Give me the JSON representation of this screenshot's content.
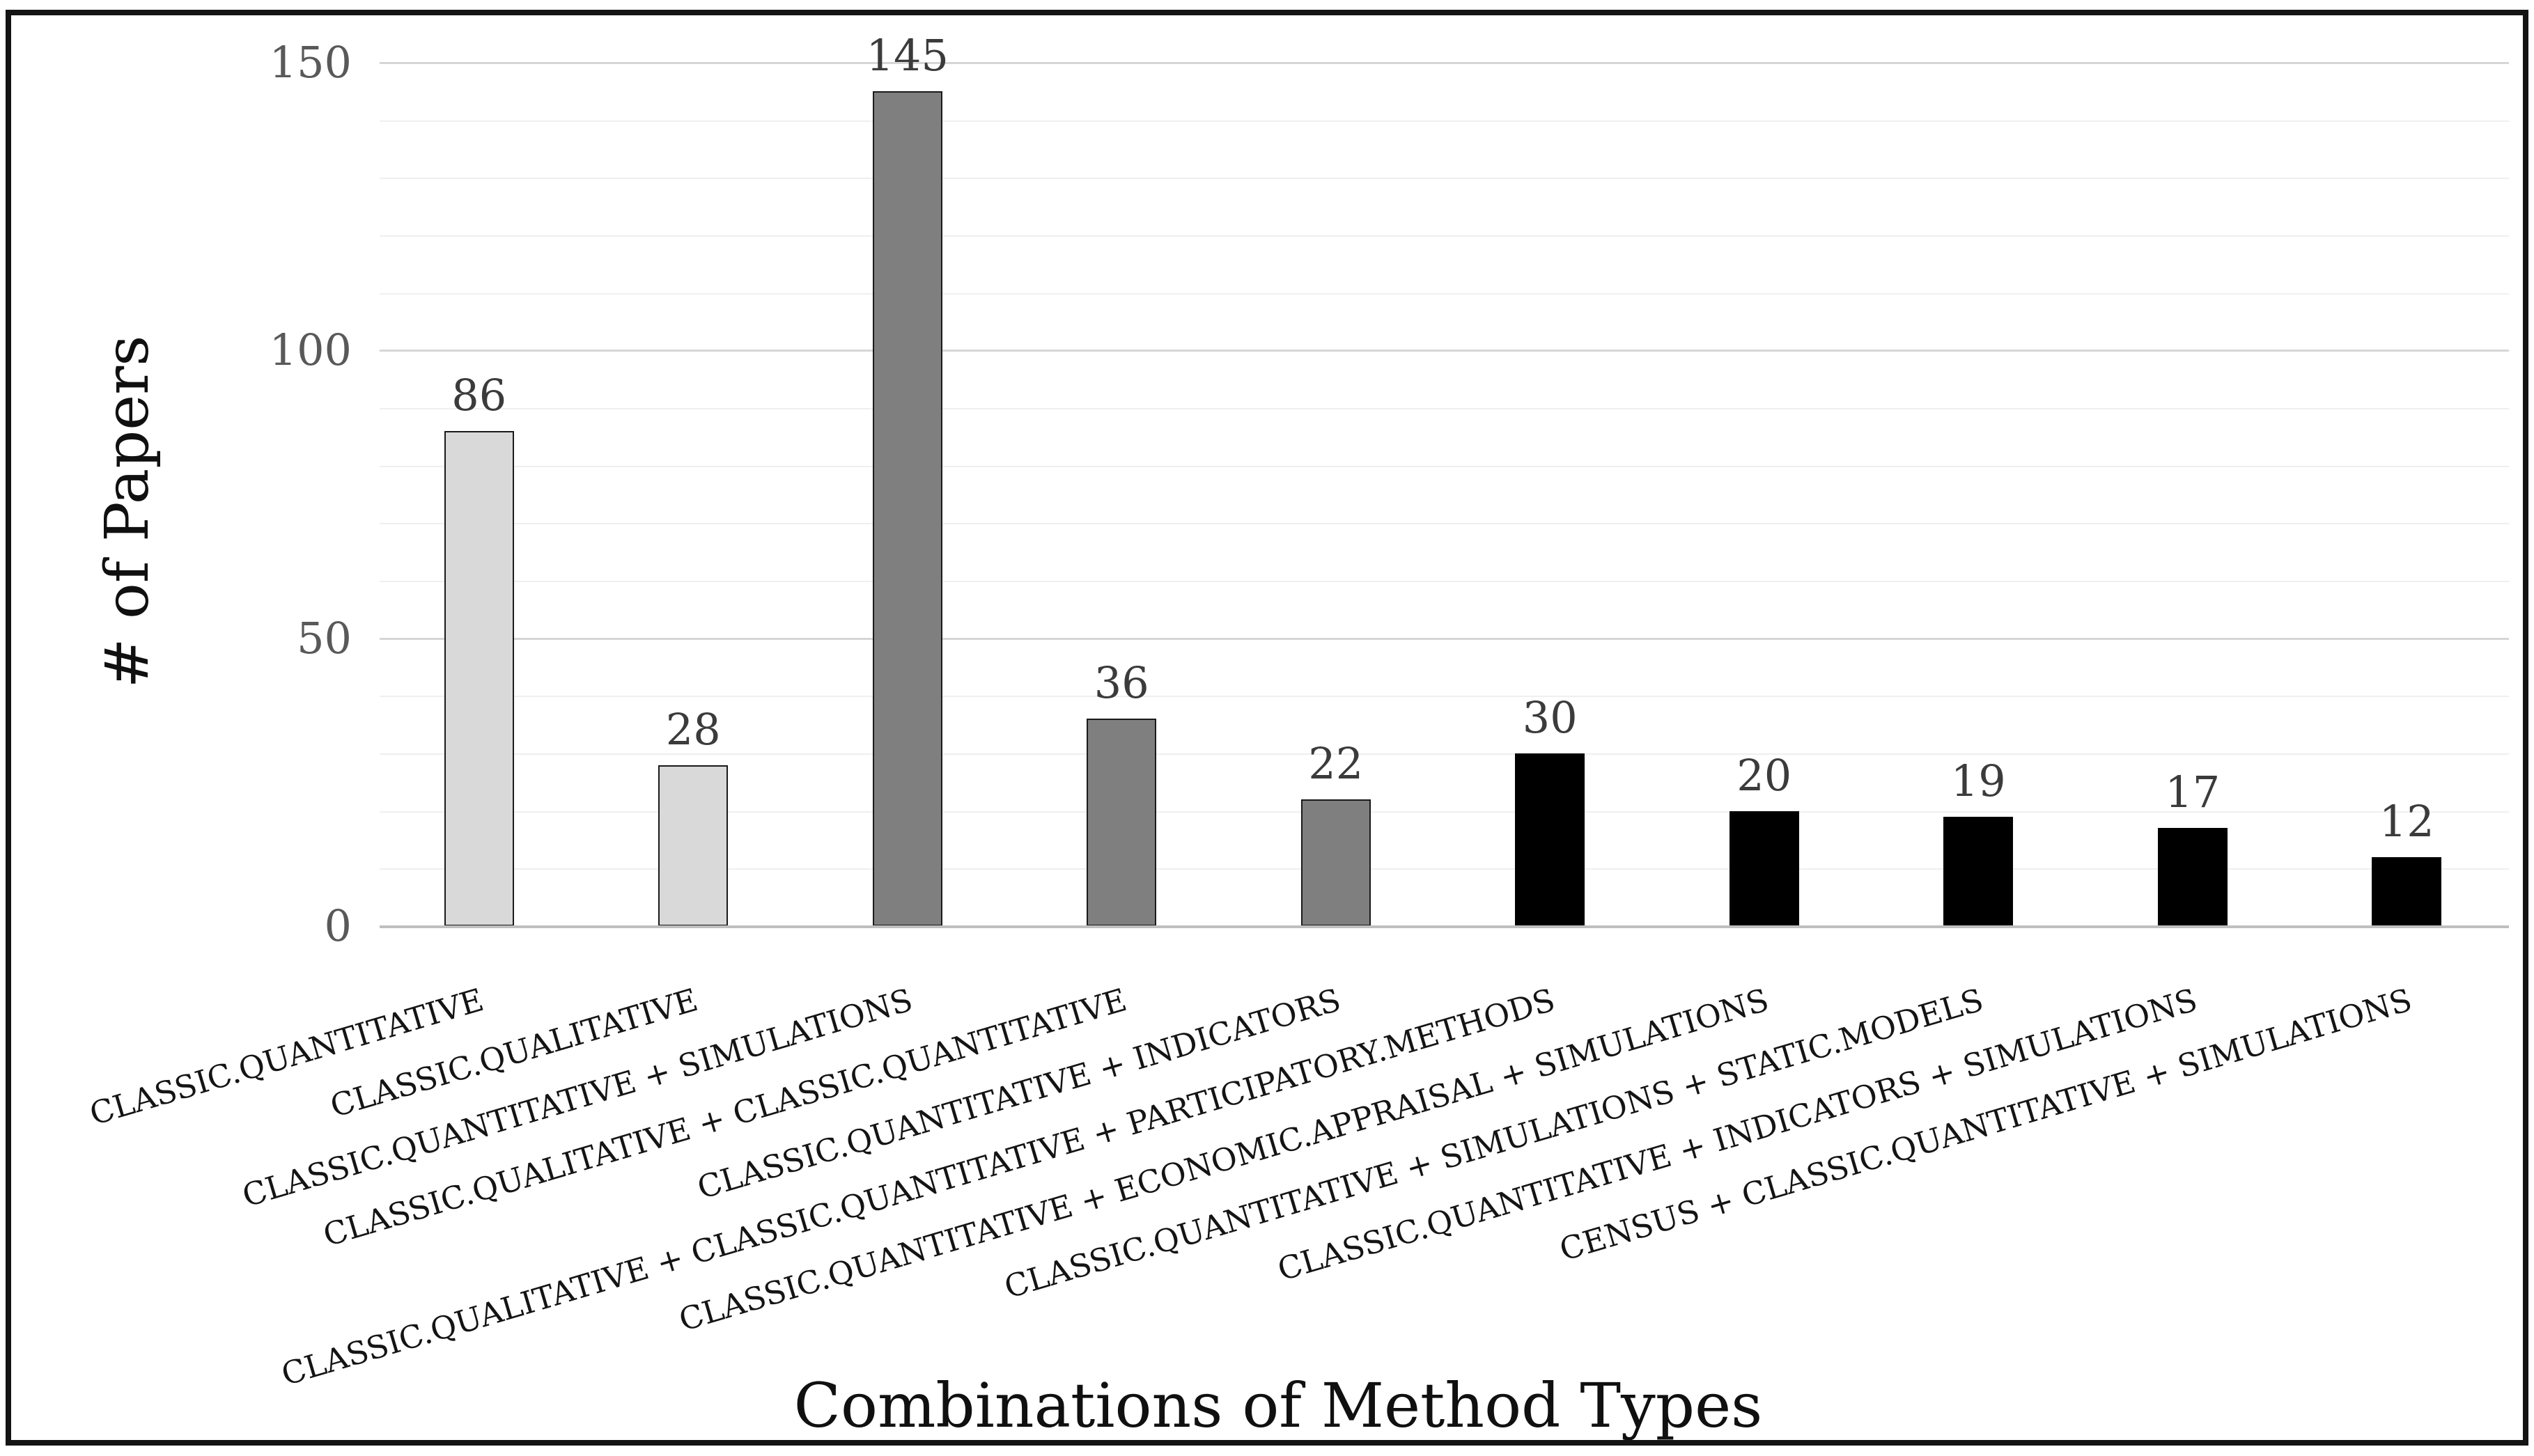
{
  "chart_data": {
    "type": "bar",
    "title": "",
    "xlabel": "Combinations of Method Types",
    "ylabel": "# of Papers",
    "categories": [
      "CLASSIC.QUANTITATIVE",
      "CLASSIC.QUALITATIVE",
      "CLASSIC.QUANTITATIVE + SIMULATIONS",
      "CLASSIC.QUALITATIVE + CLASSIC.QUANTITATIVE",
      "CLASSIC.QUANTITATIVE + INDICATORS",
      "CLASSIC.QUALITATIVE + CLASSIC.QUANTITATIVE + PARTICIPATORY.METHODS",
      "CLASSIC.QUANTITATIVE + ECONOMIC.APPRAISAL + SIMULATIONS",
      "CLASSIC.QUANTITATIVE + SIMULATIONS + STATIC.MODELS",
      "CLASSIC.QUANTITATIVE + INDICATORS + SIMULATIONS",
      "CENSUS + CLASSIC.QUANTITATIVE + SIMULATIONS"
    ],
    "values": [
      86,
      28,
      145,
      36,
      22,
      30,
      20,
      19,
      17,
      12
    ],
    "data_labels": [
      "86",
      "28",
      "145",
      "36",
      "22",
      "30",
      "20",
      "19",
      "17",
      "12"
    ],
    "bar_fill_colors": [
      "#D9D9D9",
      "#D9D9D9",
      "#7F7F7F",
      "#7F7F7F",
      "#7F7F7F",
      "#000000",
      "#000000",
      "#000000",
      "#000000",
      "#000000"
    ],
    "bar_border_colors": [
      "#1A1A1A",
      "#1A1A1A",
      "#1A1A1A",
      "#1A1A1A",
      "#1A1A1A",
      "#000000",
      "#000000",
      "#000000",
      "#000000",
      "#000000"
    ],
    "ylim": [
      0,
      150
    ],
    "yticks": [
      "0",
      "50",
      "100",
      "150"
    ],
    "minor_grid_step": 10,
    "grid": "on",
    "legend": "none",
    "colors": {
      "light_bar": "#D9D9D9",
      "mid_bar": "#7F7F7F",
      "dark_bar": "#000000",
      "major_gridline": "#D6D6D6",
      "minor_gridline": "#EFEFEF",
      "axis_line": "#BFBFBF",
      "tick_label": "#595959",
      "value_label": "#3B3B3B",
      "frame_border": "#141414"
    }
  }
}
